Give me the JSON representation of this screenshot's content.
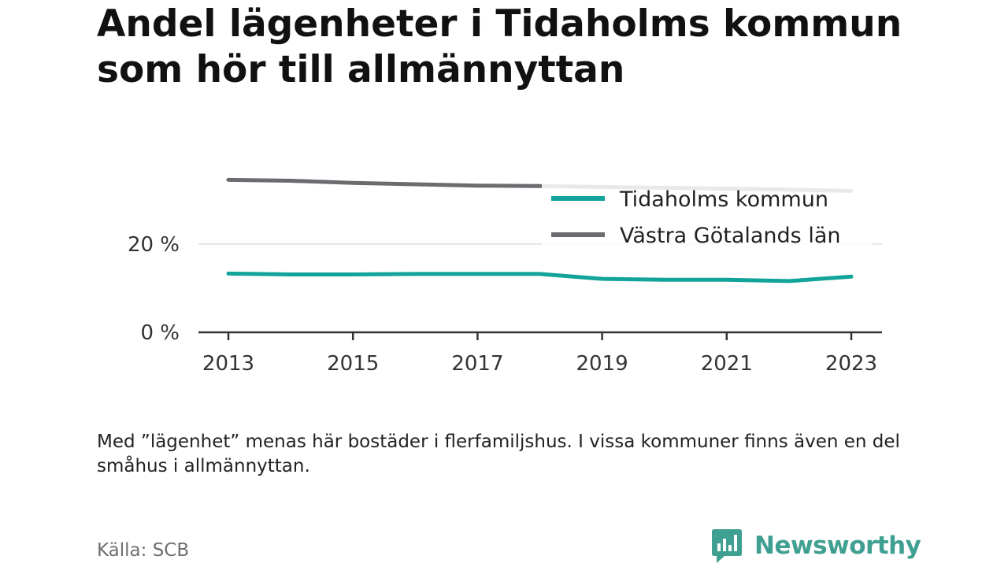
{
  "title": "Andel lägenheter i Tidaholms kommun som hör till allmännyttan",
  "note": "Med ”lägenhet” menas här bostäder i flerfamiljshus. I vissa kommuner finns även en del småhus i allmännyttan.",
  "source": "Källa: SCB",
  "brand": {
    "name": "Newsworthy",
    "icon": "newsworthy-logo-icon",
    "color": "#3f9f91"
  },
  "chart_data": {
    "type": "line",
    "title": "Andel lägenheter i Tidaholms kommun som hör till allmännyttan",
    "xlabel": "",
    "ylabel": "",
    "x": [
      2013,
      2014,
      2015,
      2016,
      2017,
      2018,
      2019,
      2020,
      2021,
      2022,
      2023
    ],
    "xticks": [
      "2013",
      "2015",
      "2017",
      "2019",
      "2021",
      "2023"
    ],
    "yticks": [
      0,
      20
    ],
    "ytick_labels": [
      "0 %",
      "20 %"
    ],
    "ylim": [
      0,
      36
    ],
    "grid": "horizontal",
    "legend_position": "top-right",
    "series": [
      {
        "name": "Tidaholms kommun",
        "color": "#12a39a",
        "values": [
          13.3,
          13.1,
          13.1,
          13.2,
          13.2,
          13.2,
          12.1,
          11.9,
          11.9,
          11.6,
          12.6
        ]
      },
      {
        "name": "Västra Götalands län",
        "color": "#6b6b70",
        "values": [
          34.5,
          34.3,
          33.8,
          33.5,
          33.2,
          33.1,
          32.9,
          32.7,
          32.5,
          32.3,
          32.0
        ]
      }
    ]
  }
}
